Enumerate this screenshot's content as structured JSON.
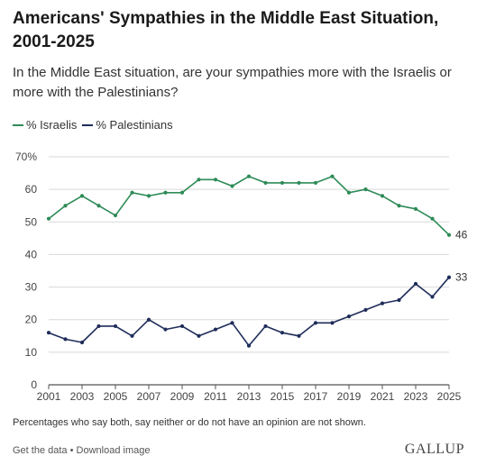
{
  "header": {
    "title": "Americans' Sympathies in the Middle East Situation, 2001-2025",
    "subtitle": "In the Middle East situation, are your sympathies more with the Israelis or more with the Palestinians?"
  },
  "footnote": "Percentages who say both, say neither or do not have an opinion are not shown.",
  "footer": {
    "get_data": "Get the data",
    "separator": "•",
    "download": "Download image",
    "brand": "GALLUP"
  },
  "colors": {
    "israelis": "#2e8b57",
    "palestinians": "#1f2d5a",
    "grid": "#d9d9d9",
    "axis": "#555555"
  },
  "chart_data": {
    "type": "line",
    "title": "Americans' Sympathies in the Middle East Situation, 2001-2025",
    "xlabel": "",
    "ylabel": "",
    "ylim": [
      0,
      70
    ],
    "yticks": [
      0,
      10,
      20,
      30,
      40,
      50,
      60,
      70
    ],
    "ytick_labels": [
      "0",
      "10",
      "20",
      "30",
      "40",
      "50",
      "60",
      "70%"
    ],
    "xlim": [
      2001,
      2025
    ],
    "xticks": [
      2001,
      2003,
      2005,
      2007,
      2009,
      2011,
      2013,
      2015,
      2017,
      2019,
      2021,
      2023,
      2025
    ],
    "grid": "horizontal",
    "legend_position": "top-left",
    "x": [
      2001,
      2002,
      2003,
      2004,
      2005,
      2006,
      2007,
      2008,
      2009,
      2010,
      2011,
      2012,
      2013,
      2014,
      2015,
      2016,
      2017,
      2018,
      2019,
      2020,
      2021,
      2022,
      2023,
      2024,
      2025
    ],
    "series": [
      {
        "name": "% Israelis",
        "color": "#2e8b57",
        "values": [
          51,
          55,
          58,
          55,
          52,
          59,
          58,
          59,
          59,
          63,
          63,
          61,
          64,
          62,
          62,
          62,
          62,
          64,
          59,
          60,
          58,
          55,
          54,
          51,
          46
        ],
        "end_label": "46"
      },
      {
        "name": "% Palestinians",
        "color": "#1f2d5a",
        "values": [
          16,
          14,
          13,
          18,
          18,
          15,
          20,
          17,
          18,
          15,
          17,
          19,
          12,
          18,
          16,
          15,
          19,
          19,
          21,
          23,
          25,
          26,
          31,
          27,
          33
        ],
        "end_label": "33"
      }
    ]
  }
}
